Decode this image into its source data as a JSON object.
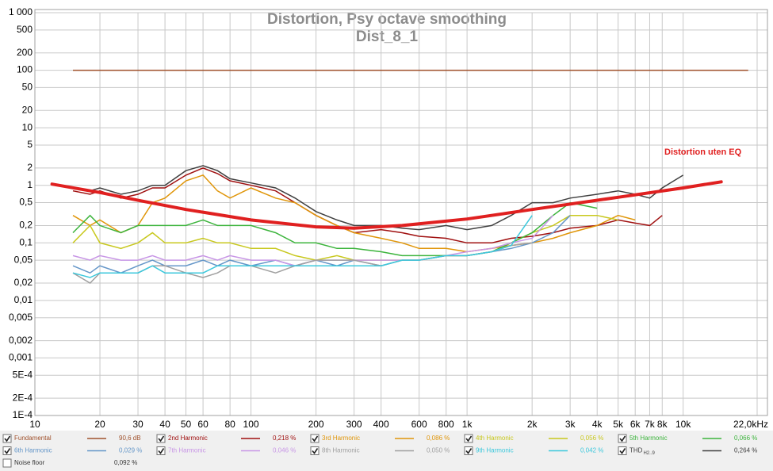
{
  "chart_data": {
    "type": "line",
    "title": "Distortion, Psy octave smoothing",
    "subtitle": "Dist_8_1",
    "log_x": true,
    "log_y": true,
    "grid": true,
    "xlim": [
      10,
      22000
    ],
    "ylim": [
      0.0001,
      1000
    ],
    "xticks": [
      10,
      20,
      30,
      40,
      50,
      60,
      80,
      100,
      200,
      300,
      400,
      600,
      800,
      {
        "value": 1000,
        "label": "1k"
      },
      {
        "value": 2000,
        "label": "2k"
      },
      {
        "value": 3000,
        "label": "3k"
      },
      {
        "value": 4000,
        "label": "4k"
      },
      {
        "value": 5000,
        "label": "5k"
      },
      {
        "value": 6000,
        "label": "6k"
      },
      {
        "value": 7000,
        "label": "7k"
      },
      {
        "value": 8000,
        "label": "8k"
      },
      {
        "value": 10000,
        "label": "10k"
      },
      {
        "value": 22000,
        "label": "22,0kHz"
      }
    ],
    "yticks": [
      {
        "value": 1000,
        "label": "1 000"
      },
      500,
      200,
      100,
      50,
      20,
      10,
      5,
      2,
      1,
      {
        "value": 0.5,
        "label": "0,5"
      },
      {
        "value": 0.2,
        "label": "0,2"
      },
      {
        "value": 0.1,
        "label": "0,1"
      },
      {
        "value": 0.05,
        "label": "0,05"
      },
      {
        "value": 0.02,
        "label": "0,02"
      },
      {
        "value": 0.01,
        "label": "0,01"
      },
      {
        "value": 0.005,
        "label": "0,005"
      },
      {
        "value": 0.002,
        "label": "0,002"
      },
      {
        "value": 0.001,
        "label": "0,001"
      },
      {
        "value": 0.0005,
        "label": "5E-4"
      },
      {
        "value": 0.0002,
        "label": "2E-4"
      },
      {
        "value": 0.0001,
        "label": "1E-4"
      }
    ],
    "x": [
      15,
      18,
      20,
      25,
      30,
      35,
      40,
      50,
      60,
      70,
      80,
      100,
      130,
      160,
      200,
      250,
      300,
      400,
      500,
      600,
      800,
      1000,
      1300,
      1600,
      2000,
      2500,
      3000,
      4000,
      5000,
      6000,
      7000,
      8000,
      10000,
      20000
    ],
    "series": [
      {
        "name": "Fundamental",
        "color": "#a0522d",
        "visible": true,
        "value_label": "90,6 dB",
        "values": [
          100,
          100,
          100,
          100,
          100,
          100,
          100,
          100,
          100,
          100,
          100,
          100,
          100,
          100,
          100,
          100,
          100,
          100,
          100,
          100,
          100,
          100,
          100,
          100,
          100,
          100,
          100,
          100,
          100,
          100,
          100,
          100,
          100,
          100
        ]
      },
      {
        "name": "2nd Harmonic",
        "color": "#a01010",
        "visible": true,
        "value_label": "0,218 %",
        "values": [
          0.8,
          0.7,
          0.8,
          0.6,
          0.7,
          0.9,
          0.9,
          1.5,
          2.0,
          1.6,
          1.2,
          1.0,
          0.8,
          0.5,
          0.3,
          0.2,
          0.15,
          0.17,
          0.15,
          0.13,
          0.12,
          0.1,
          0.1,
          0.12,
          0.13,
          0.15,
          0.18,
          0.2,
          0.25,
          0.22,
          0.2,
          0.3,
          null,
          null
        ]
      },
      {
        "name": "3rd Harmonic",
        "color": "#e0960a",
        "visible": true,
        "value_label": "0,086 %",
        "values": [
          0.3,
          0.2,
          0.25,
          0.15,
          0.2,
          0.5,
          0.6,
          1.2,
          1.5,
          0.8,
          0.6,
          0.9,
          0.6,
          0.5,
          0.3,
          0.2,
          0.15,
          0.12,
          0.1,
          0.08,
          0.08,
          0.07,
          0.08,
          0.09,
          0.1,
          0.12,
          0.15,
          0.2,
          0.3,
          0.25,
          null,
          null,
          null,
          null
        ]
      },
      {
        "name": "4th Harmonic",
        "color": "#c8c81e",
        "visible": true,
        "value_label": "0,056 %",
        "values": [
          0.1,
          0.2,
          0.1,
          0.08,
          0.1,
          0.15,
          0.1,
          0.1,
          0.12,
          0.1,
          0.1,
          0.08,
          0.08,
          0.06,
          0.05,
          0.06,
          0.05,
          0.05,
          0.05,
          0.05,
          0.06,
          0.06,
          0.07,
          0.1,
          0.15,
          0.2,
          0.3,
          0.3,
          0.25,
          null,
          null,
          null,
          null,
          null
        ]
      },
      {
        "name": "5th Harmonic",
        "color": "#3cb43c",
        "visible": true,
        "value_label": "0,066 %",
        "values": [
          0.15,
          0.3,
          0.2,
          0.15,
          0.2,
          0.2,
          0.2,
          0.2,
          0.25,
          0.2,
          0.2,
          0.2,
          0.15,
          0.1,
          0.1,
          0.08,
          0.08,
          0.07,
          0.06,
          0.06,
          0.06,
          0.06,
          0.07,
          0.1,
          0.15,
          0.3,
          0.5,
          0.4,
          null,
          null,
          null,
          null,
          null,
          null
        ]
      },
      {
        "name": "6th Harmonic",
        "color": "#6496c8",
        "visible": true,
        "value_label": "0,029 %",
        "values": [
          0.04,
          0.03,
          0.04,
          0.03,
          0.04,
          0.05,
          0.04,
          0.04,
          0.05,
          0.04,
          0.05,
          0.04,
          0.05,
          0.04,
          0.05,
          0.04,
          0.05,
          0.04,
          0.05,
          0.05,
          0.06,
          0.06,
          0.07,
          0.08,
          0.1,
          0.15,
          0.3,
          null,
          null,
          null,
          null,
          null,
          null,
          null
        ]
      },
      {
        "name": "7th Harmonic",
        "color": "#c896e6",
        "visible": true,
        "value_label": "0,046 %",
        "values": [
          0.06,
          0.05,
          0.06,
          0.05,
          0.05,
          0.06,
          0.05,
          0.05,
          0.06,
          0.05,
          0.06,
          0.05,
          0.05,
          0.04,
          0.05,
          0.05,
          0.05,
          0.05,
          0.05,
          0.05,
          0.06,
          0.07,
          0.08,
          0.1,
          0.12,
          0.3,
          null,
          null,
          null,
          null,
          null,
          null,
          null,
          null
        ]
      },
      {
        "name": "8th Harmonic",
        "color": "#a0a0a0",
        "visible": true,
        "value_label": "0,050 %",
        "values": [
          0.03,
          0.02,
          0.03,
          0.03,
          0.03,
          0.04,
          0.04,
          0.03,
          0.025,
          0.03,
          0.04,
          0.04,
          0.03,
          0.04,
          0.05,
          0.05,
          0.05,
          0.04,
          0.05,
          0.05,
          0.06,
          0.06,
          0.07,
          0.09,
          0.1,
          null,
          null,
          null,
          null,
          null,
          null,
          null,
          null,
          null
        ]
      },
      {
        "name": "9th Harmonic",
        "color": "#3cc8dc",
        "visible": true,
        "value_label": "0,042 %",
        "values": [
          0.03,
          0.025,
          0.03,
          0.03,
          0.03,
          0.04,
          0.03,
          0.03,
          0.03,
          0.04,
          0.04,
          0.04,
          0.04,
          0.04,
          0.04,
          0.04,
          0.04,
          0.04,
          0.05,
          0.05,
          0.06,
          0.06,
          0.07,
          0.09,
          0.3,
          null,
          null,
          null,
          null,
          null,
          null,
          null,
          null,
          null
        ]
      },
      {
        "name": "THD",
        "name_sub": "H2..9",
        "color": "#404040",
        "visible": true,
        "value_label": "0,264 %",
        "values": [
          0.9,
          0.8,
          0.9,
          0.7,
          0.8,
          1.0,
          1.0,
          1.8,
          2.2,
          1.8,
          1.3,
          1.1,
          0.9,
          0.6,
          0.35,
          0.25,
          0.2,
          0.2,
          0.18,
          0.17,
          0.2,
          0.17,
          0.2,
          0.3,
          0.5,
          0.5,
          0.6,
          0.7,
          0.8,
          0.7,
          0.6,
          0.9,
          1.5,
          null
        ]
      },
      {
        "name": "Noise floor",
        "color": "#8b4513",
        "visible": false,
        "value_label": "0,092 %",
        "values": [
          null,
          null,
          null,
          null,
          null,
          null,
          null,
          null,
          null,
          null,
          null,
          null,
          null,
          null,
          null,
          null,
          null,
          null,
          null,
          null,
          null,
          null,
          null,
          null,
          null,
          null,
          null,
          null,
          null,
          null,
          null,
          null,
          null,
          null
        ]
      }
    ],
    "annotation": {
      "text": "Distortion uten EQ",
      "color": "#e02020",
      "x": [
        12,
        20,
        30,
        50,
        100,
        200,
        300,
        500,
        1000,
        2000,
        5000,
        10000,
        15000
      ],
      "values": [
        1.05,
        0.75,
        0.55,
        0.38,
        0.25,
        0.19,
        0.18,
        0.2,
        0.26,
        0.38,
        0.62,
        0.9,
        1.15
      ]
    }
  }
}
